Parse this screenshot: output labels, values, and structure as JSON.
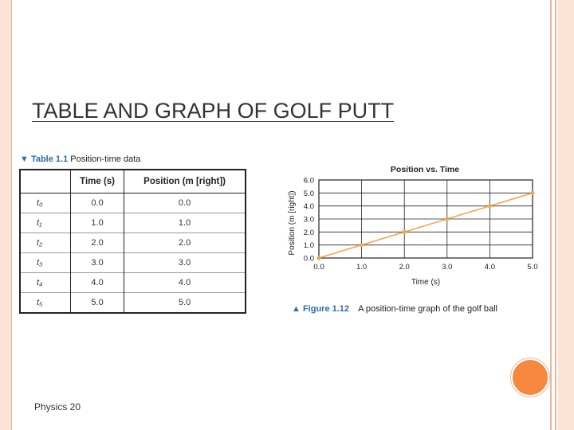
{
  "slide": {
    "title": "TABLE AND GRAPH OF GOLF PUTT",
    "footer": "Physics 20"
  },
  "table": {
    "caption_number": "▼ Table 1.1",
    "caption_text": "Position-time data",
    "headers": [
      "",
      "Time (s)",
      "Position (m [right])"
    ],
    "rows": [
      {
        "label": "t₀",
        "time": "0.0",
        "position": "0.0"
      },
      {
        "label": "t₁",
        "time": "1.0",
        "position": "1.0"
      },
      {
        "label": "t₂",
        "time": "2.0",
        "position": "2.0"
      },
      {
        "label": "t₃",
        "time": "3.0",
        "position": "3.0"
      },
      {
        "label": "t₄",
        "time": "4.0",
        "position": "4.0"
      },
      {
        "label": "t₅",
        "time": "5.0",
        "position": "5.0"
      }
    ]
  },
  "figure": {
    "caption_number": "▲ Figure 1.12",
    "caption_text": "A position-time graph of the golf ball"
  },
  "colors": {
    "accent": "#f7893e",
    "line": "#f4a64a",
    "caption_blue": "#2b6cb0"
  },
  "chart_data": {
    "type": "line",
    "title": "Position vs. Time",
    "xlabel": "Time (s)",
    "ylabel": "Position (m [right])",
    "xlim": [
      0,
      5
    ],
    "ylim": [
      0,
      6
    ],
    "x_ticks": [
      "0.0",
      "1.0",
      "2.0",
      "3.0",
      "4.0",
      "5.0"
    ],
    "y_ticks": [
      "0.0",
      "1.0",
      "2.0",
      "3.0",
      "4.0",
      "5.0",
      "6.0"
    ],
    "grid": true,
    "series": [
      {
        "x": [
          0,
          1,
          2,
          3,
          4,
          5
        ],
        "values": [
          0,
          1,
          2,
          3,
          4,
          5
        ]
      }
    ]
  }
}
